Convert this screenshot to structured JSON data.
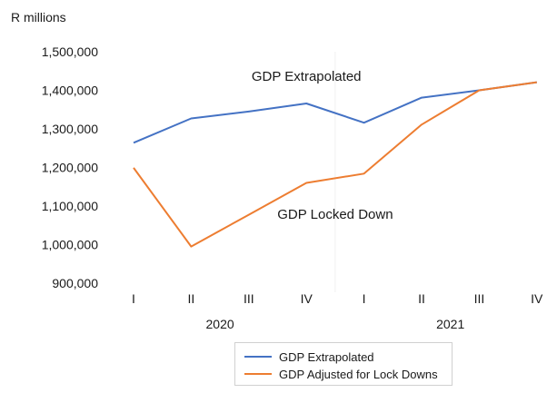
{
  "chart_data": {
    "type": "line",
    "ylabel": "R millions",
    "xlabel": "",
    "title": "",
    "ylim": [
      900000,
      1500000
    ],
    "y_ticks": [
      900000,
      1000000,
      1100000,
      1200000,
      1300000,
      1400000,
      1500000
    ],
    "y_tick_labels": [
      "900,000",
      "1,000,000",
      "1,100,000",
      "1,200,000",
      "1,300,000",
      "1,400,000",
      "1,500,000"
    ],
    "categories": [
      "I",
      "II",
      "III",
      "IV",
      "I",
      "II",
      "III",
      "IV"
    ],
    "year_groups": [
      {
        "label": "2020",
        "start": 0,
        "end": 3
      },
      {
        "label": "2021",
        "start": 4,
        "end": 7
      }
    ],
    "grid": false,
    "legend_position": "bottom",
    "series": [
      {
        "name": "GDP Extrapolated",
        "color": "#4472c4",
        "values": [
          1264000,
          1327000,
          1345000,
          1366000,
          1316000,
          1381000,
          1400000,
          1421000
        ]
      },
      {
        "name": "GDP Adjusted for Lock Downs",
        "color": "#ed7d31",
        "values": [
          1199000,
          995000,
          null,
          1160000,
          1184000,
          1311000,
          1400000,
          1421000
        ]
      }
    ],
    "annotations": [
      {
        "text": "GDP Extrapolated",
        "x_index": 3,
        "y": 1425000
      },
      {
        "text": "GDP Locked Down",
        "x_index": 3.5,
        "y": 1067000
      }
    ]
  }
}
